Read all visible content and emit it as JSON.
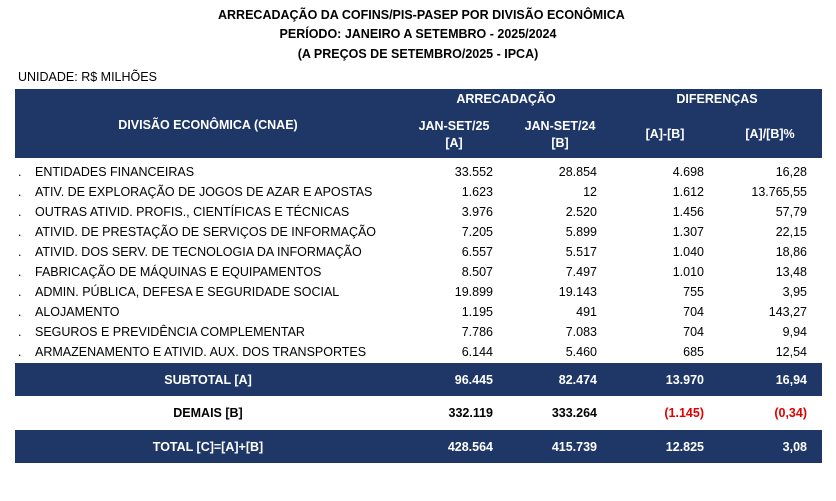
{
  "header": {
    "lines": [
      "ARRECADAÇÃO DA COFINS/PIS-PASEP POR DIVISÃO ECONÔMICA",
      "PERÍODO: JANEIRO A SETEMBRO - 2025/2024",
      "(A PREÇOS DE SETEMBRO/2025 - IPCA)"
    ],
    "unit": "UNIDADE: R$ MILHÕES"
  },
  "table": {
    "group_headers": [
      "ARRECADAÇÃO",
      "DIFERENÇAS"
    ],
    "columns": [
      "DIVISÃO ECONÔMICA (CNAE)",
      [
        "JAN-SET/25",
        "[A]"
      ],
      [
        "JAN-SET/24",
        "[B]"
      ],
      "[A]-[B]",
      "[A]/[B]%"
    ],
    "rows": [
      [
        ".",
        "ENTIDADES FINANCEIRAS",
        "33.552",
        "28.854",
        "4.698",
        "16,28"
      ],
      [
        ".",
        "ATIV. DE EXPLORAÇÃO DE JOGOS DE AZAR E APOSTAS",
        "1.623",
        "12",
        "1.612",
        "13.765,55"
      ],
      [
        ".",
        "OUTRAS ATIVID. PROFIS., CIENTÍFICAS E TÉCNICAS",
        "3.976",
        "2.520",
        "1.456",
        "57,79"
      ],
      [
        ".",
        "ATIVID. DE PRESTAÇÃO DE SERVIÇOS DE INFORMAÇÃO",
        "7.205",
        "5.899",
        "1.307",
        "22,15"
      ],
      [
        ".",
        "ATIVID. DOS SERV. DE TECNOLOGIA DA INFORMAÇÃO",
        "6.557",
        "5.517",
        "1.040",
        "18,86"
      ],
      [
        ".",
        "FABRICAÇÃO DE MÁQUINAS E EQUIPAMENTOS",
        "8.507",
        "7.497",
        "1.010",
        "13,48"
      ],
      [
        ".",
        "ADMIN. PÚBLICA, DEFESA E SEGURIDADE SOCIAL",
        "19.899",
        "19.143",
        "755",
        "3,95"
      ],
      [
        ".",
        "ALOJAMENTO",
        "1.195",
        "491",
        "704",
        "143,27"
      ],
      [
        ".",
        "SEGUROS E PREVIDÊNCIA COMPLEMENTAR",
        "7.786",
        "7.083",
        "704",
        "9,94"
      ],
      [
        ".",
        "ARMAZENAMENTO E ATIVID. AUX. DOS TRANSPORTES",
        "6.144",
        "5.460",
        "685",
        "12,54"
      ]
    ],
    "subtotal": [
      "SUBTOTAL [A]",
      "96.445",
      "82.474",
      "13.970",
      "16,94"
    ],
    "others": [
      "DEMAIS [B]",
      "332.119",
      "333.264",
      "(1.145)",
      "(0,34)"
    ],
    "total": [
      "TOTAL [C]=[A]+[B]",
      "428.564",
      "415.739",
      "12.825",
      "3,08"
    ]
  }
}
